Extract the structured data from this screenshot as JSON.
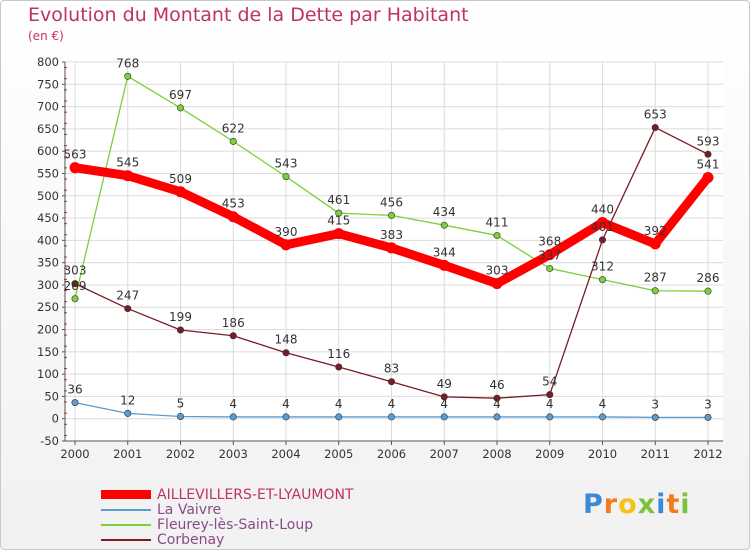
{
  "chart_data": {
    "type": "line",
    "title": "Evolution du Montant de la Dette par Habitant",
    "subtitle": "(en €)",
    "x": [
      "2000",
      "2001",
      "2002",
      "2003",
      "2004",
      "2005",
      "2006",
      "2007",
      "2008",
      "2009",
      "2010",
      "2011",
      "2012"
    ],
    "ylim": [
      -50,
      800
    ],
    "yticks": [
      -50,
      0,
      50,
      100,
      150,
      200,
      250,
      300,
      350,
      400,
      450,
      500,
      550,
      600,
      650,
      700,
      750,
      800
    ],
    "grid": true,
    "legend": "bottom-left",
    "series": [
      {
        "name": "AILLEVILLERS-ET-LYAUMONT",
        "color": "#ff0000",
        "values": [
          563,
          545,
          509,
          453,
          390,
          415,
          383,
          344,
          303,
          368,
          440,
          392,
          541
        ]
      },
      {
        "name": "La Vaivre",
        "color": "#5a9bd0",
        "values": [
          36,
          12,
          5,
          4,
          4,
          4,
          4,
          4,
          4,
          4,
          4,
          3,
          3
        ]
      },
      {
        "name": "Fleurey-lès-Saint-Loup",
        "color": "#7ad13a",
        "values": [
          269,
          768,
          697,
          622,
          543,
          461,
          456,
          434,
          411,
          337,
          312,
          287,
          286
        ]
      },
      {
        "name": "Corbenay",
        "color": "#7a1c24",
        "values": [
          303,
          247,
          199,
          186,
          148,
          116,
          83,
          49,
          46,
          54,
          401,
          653,
          593
        ]
      }
    ]
  },
  "logo": {
    "letters": [
      "P",
      "r",
      "o",
      "x",
      "i",
      "t",
      "i"
    ],
    "colors": [
      "#3a8ad8",
      "#f07c1a",
      "#f2c418",
      "#7bc23f",
      "#3a8ad8",
      "#f07c1a",
      "#7bc23f"
    ]
  }
}
